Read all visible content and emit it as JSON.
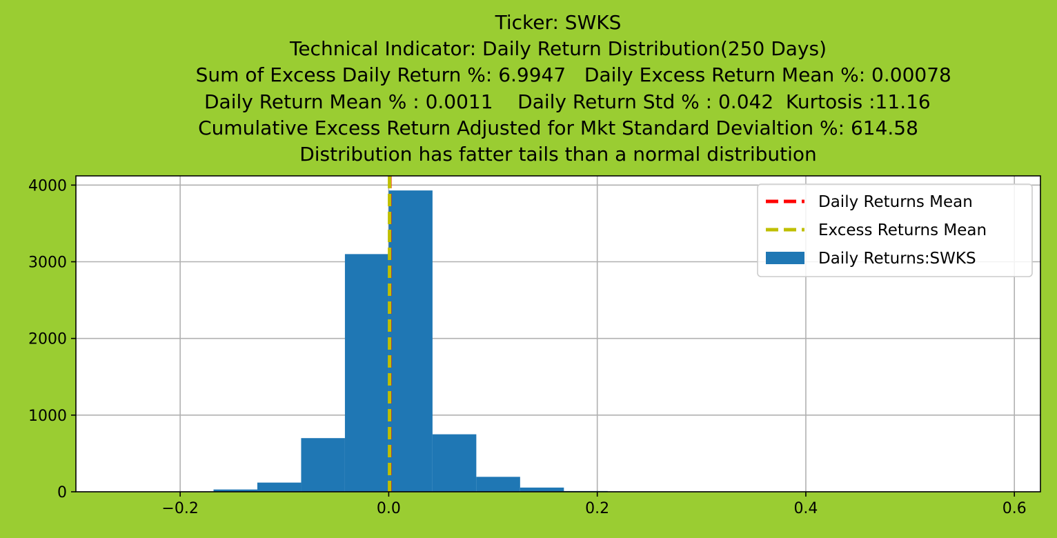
{
  "title_lines": [
    "Ticker: SWKS",
    "Technical Indicator: Daily Return Distribution(250 Days)",
    "     Sum of Excess Daily Return %: 6.9947   Daily Excess Return Mean %: 0.00078",
    "   Daily Return Mean % : 0.0011    Daily Return Std % : 0.042  Kurtosis :11.16",
    "Cumulative Excess Return Adjusted for Mkt Standard Devialtion %: 614.58",
    "Distribution has fatter tails than a normal distribution"
  ],
  "chart_data": {
    "type": "bar",
    "title": "Ticker: SWKS",
    "xlim": [
      -0.3,
      0.625
    ],
    "ylim": [
      0,
      4120
    ],
    "grid": true,
    "xticks": [
      -0.2,
      0.0,
      0.2,
      0.4,
      0.6
    ],
    "xtick_labels": [
      "−0.2",
      "0.0",
      "0.2",
      "0.4",
      "0.6"
    ],
    "yticks": [
      0,
      1000,
      2000,
      3000,
      4000
    ],
    "ytick_labels": [
      "0",
      "1000",
      "2000",
      "3000",
      "4000"
    ],
    "bin_width": 0.042,
    "bins": [
      {
        "x0": -0.21,
        "count": 5
      },
      {
        "x0": -0.168,
        "count": 30
      },
      {
        "x0": -0.126,
        "count": 120
      },
      {
        "x0": -0.084,
        "count": 700
      },
      {
        "x0": -0.042,
        "count": 3100
      },
      {
        "x0": 0.0,
        "count": 3930
      },
      {
        "x0": 0.042,
        "count": 750
      },
      {
        "x0": 0.084,
        "count": 195
      },
      {
        "x0": 0.126,
        "count": 55
      },
      {
        "x0": 0.168,
        "count": 10
      },
      {
        "x0": 0.21,
        "count": 5
      }
    ],
    "hist_color": "#1f77b4",
    "daily_returns_mean": 0.0011,
    "daily_mean_color": "#ff0000",
    "excess_returns_mean": 0.00078,
    "excess_mean_color": "#bfbf00",
    "legend_position": "upper right",
    "legend": [
      {
        "label": "Daily Returns Mean",
        "kind": "dashed-line",
        "color": "#ff0000"
      },
      {
        "label": "Excess Returns Mean",
        "kind": "dashed-line",
        "color": "#bfbf00"
      },
      {
        "label": "Daily Returns:SWKS",
        "kind": "patch",
        "color": "#1f77b4"
      }
    ]
  }
}
